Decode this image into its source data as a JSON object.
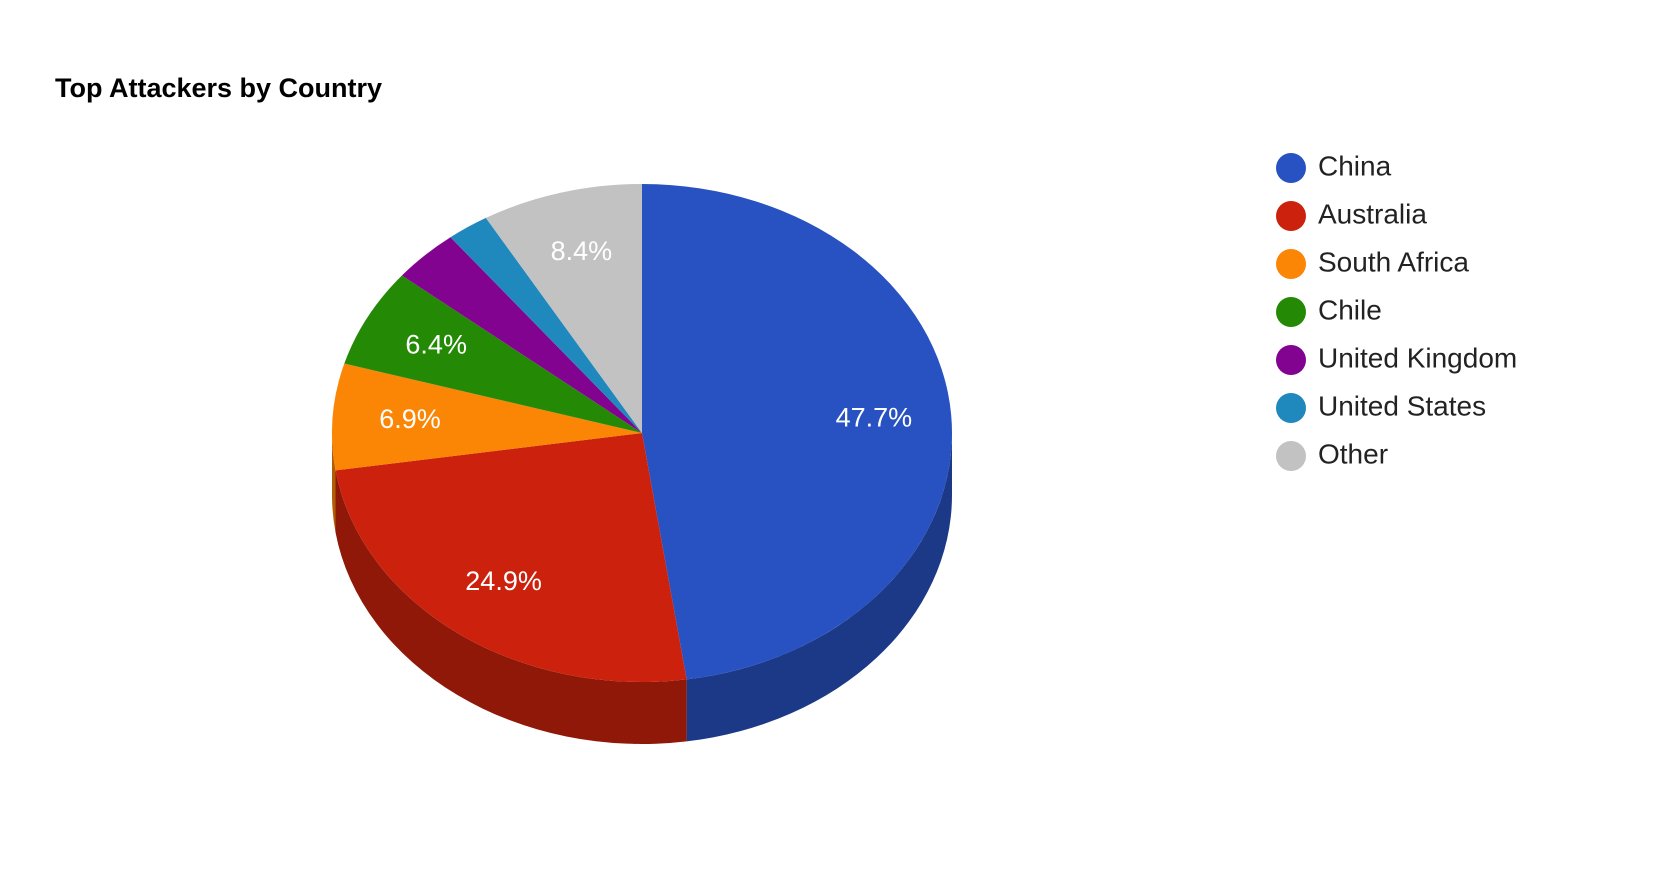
{
  "chart_data": {
    "type": "pie3d",
    "title": "Top Attackers by Country",
    "categories": [
      "China",
      "Australia",
      "South Africa",
      "Chile",
      "United Kingdom",
      "United States",
      "Other"
    ],
    "values": [
      47.7,
      24.9,
      6.9,
      6.4,
      3.5,
      2.2,
      8.4
    ],
    "value_labels": [
      "47.7%",
      "24.9%",
      "6.9%",
      "6.4%",
      null,
      null,
      "8.4%"
    ],
    "colors": [
      "#2851c2",
      "#cc220d",
      "#fb8504",
      "#248a06",
      "#82038f",
      "#1f89bd",
      "#c2c2c2"
    ],
    "legend": "right"
  }
}
